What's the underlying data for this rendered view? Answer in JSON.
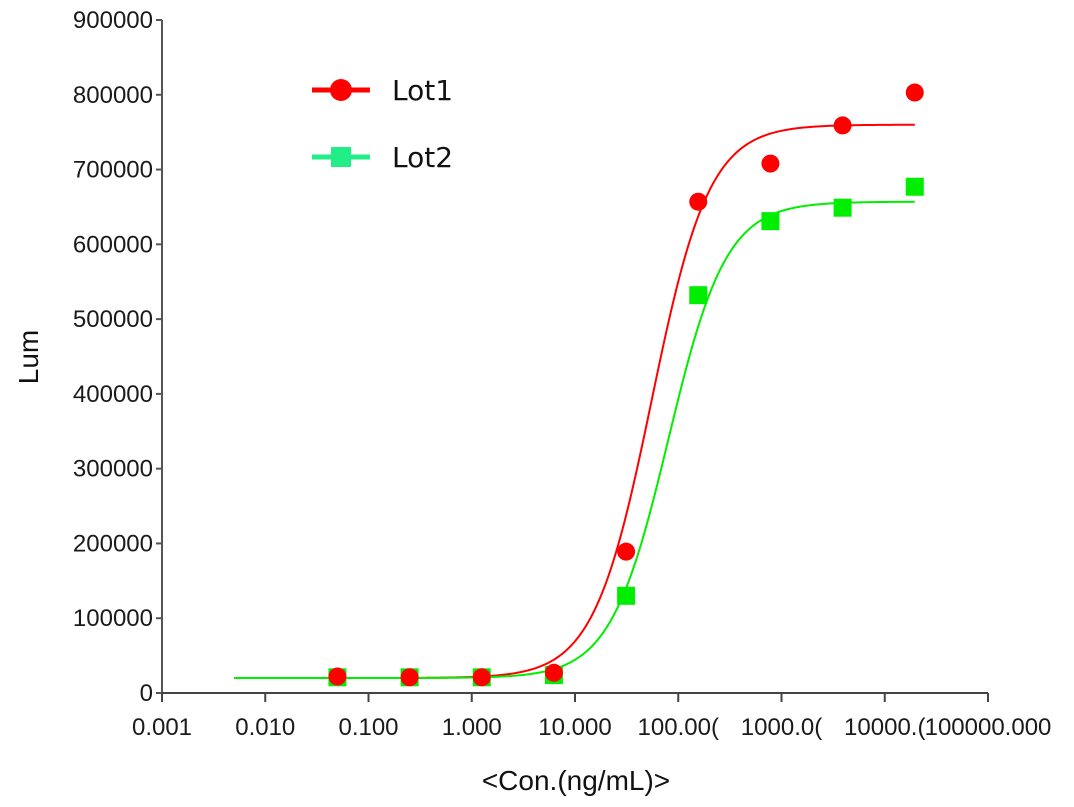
{
  "chart_data": {
    "type": "scatter",
    "title": "",
    "xlabel": "<Con.(ng/mL)>",
    "ylabel": "Lum",
    "xscale": "log",
    "xlim": [
      0.001,
      100000
    ],
    "ylim": [
      0,
      900000
    ],
    "x_ticks": [
      0.001,
      0.01,
      0.1,
      1,
      10,
      100,
      1000,
      10000,
      100000
    ],
    "x_tick_labels": [
      "0.001",
      "0.010",
      "0.100",
      "1.000",
      "10.000",
      "100.00(",
      "1000.0(",
      "10000.(",
      "100000.000"
    ],
    "y_ticks": [
      0,
      100000,
      200000,
      300000,
      400000,
      500000,
      600000,
      700000,
      800000,
      900000
    ],
    "y_tick_labels": [
      "0",
      "100000",
      "200000",
      "300000",
      "400000",
      "500000",
      "600000",
      "700000",
      "800000",
      "900000"
    ],
    "grid": false,
    "legend_position": "top-left",
    "x": [
      0.05,
      0.25,
      1.25,
      6.25,
      31.25,
      156.25,
      781.25,
      3906.25,
      19531.25
    ],
    "series": [
      {
        "name": "Lot1",
        "color": "#ff0000",
        "marker": "circle",
        "values": [
          22000,
          21000,
          21000,
          27000,
          189000,
          657000,
          708000,
          759000,
          803000
        ],
        "fit": {
          "model": "4PL",
          "bottom": 20000,
          "top": 760000,
          "ec50": 55,
          "hill": 1.55,
          "x_range": [
            0.005,
            19531.25
          ]
        }
      },
      {
        "name": "Lot2",
        "color": "#00ee00",
        "legend_color": "#22ee88",
        "marker": "square",
        "values": [
          21000,
          21000,
          21000,
          24000,
          130000,
          532000,
          631000,
          649000,
          677000
        ],
        "fit": {
          "model": "4PL",
          "bottom": 20000,
          "top": 657000,
          "ec50": 80,
          "hill": 1.55,
          "x_range": [
            0.005,
            19531.25
          ]
        }
      }
    ]
  }
}
